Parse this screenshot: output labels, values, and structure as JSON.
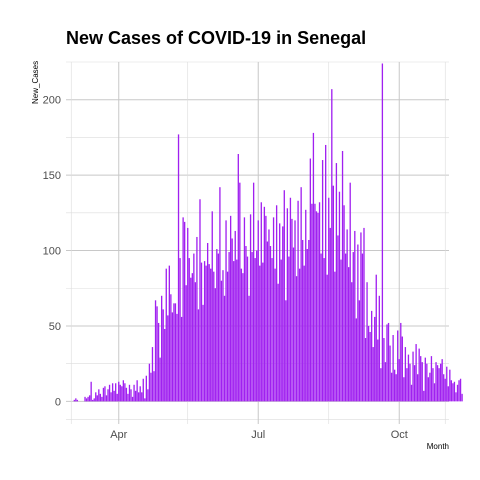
{
  "chart_data": {
    "type": "bar",
    "title": "New Cases of COVID-19 in Senegal",
    "xlabel": "Month",
    "ylabel": "New_Cases",
    "start_date": "2020-03-02",
    "end_date": "2020-10-31",
    "ylim": [
      -15,
      225
    ],
    "y_ticks": [
      0,
      50,
      100,
      150,
      200
    ],
    "x_ticks": [
      {
        "date": "2020-04-01",
        "label": "Apr"
      },
      {
        "date": "2020-07-01",
        "label": "Jul"
      },
      {
        "date": "2020-10-01",
        "label": "Oct"
      }
    ],
    "x_minor_ticks": [
      "2020-03-01",
      "2020-05-16",
      "2020-08-16",
      "2020-10-31"
    ],
    "grid": true,
    "legend": "none",
    "bar_color": "#A020F0",
    "series": [
      {
        "values": [
          0,
          1,
          2,
          1,
          0,
          0,
          0,
          0,
          3,
          2,
          3,
          4,
          13,
          1,
          2,
          6,
          4,
          8,
          5,
          3,
          9,
          10,
          4,
          8,
          11,
          6,
          12,
          7,
          12,
          5,
          13,
          11,
          10,
          14,
          12,
          9,
          5,
          11,
          8,
          3,
          11,
          7,
          14,
          6,
          10,
          6,
          15,
          2,
          17,
          8,
          25,
          19,
          36,
          20,
          67,
          63,
          52,
          29,
          70,
          61,
          48,
          88,
          57,
          90,
          71,
          59,
          65,
          65,
          58,
          177,
          95,
          56,
          122,
          119,
          77,
          115,
          95,
          82,
          85,
          98,
          79,
          109,
          61,
          134,
          92,
          64,
          93,
          90,
          105,
          91,
          88,
          126,
          86,
          75,
          101,
          98,
          142,
          80,
          87,
          70,
          120,
          86,
          99,
          123,
          108,
          93,
          113,
          94,
          164,
          145,
          88,
          85,
          122,
          103,
          96,
          70,
          124,
          99,
          145,
          95,
          100,
          120,
          90,
          132,
          92,
          129,
          123,
          106,
          114,
          103,
          95,
          122,
          88,
          130,
          78,
          118,
          94,
          116,
          140,
          67,
          128,
          96,
          135,
          121,
          102,
          120,
          83,
          133,
          88,
          142,
          107,
          90,
          127,
          101,
          107,
          161,
          131,
          178,
          131,
          126,
          125,
          132,
          98,
          160,
          95,
          170,
          84,
          135,
          115,
          207,
          143,
          86,
          158,
          110,
          139,
          94,
          166,
          130,
          98,
          114,
          89,
          145,
          79,
          99,
          113,
          55,
          104,
          67,
          112,
          98,
          115,
          42,
          79,
          50,
          46,
          60,
          36,
          56,
          84,
          41,
          70,
          22,
          224,
          42,
          26,
          51,
          52,
          37,
          19,
          44,
          21,
          18,
          47,
          28,
          52,
          43,
          16,
          36,
          22,
          31,
          25,
          11,
          33,
          24,
          38,
          18,
          35,
          30,
          26,
          7,
          29,
          25,
          16,
          19,
          30,
          22,
          12,
          26,
          24,
          22,
          25,
          28,
          18,
          15,
          23,
          10,
          21,
          14,
          12,
          13,
          6,
          11,
          14,
          15,
          5
        ]
      }
    ]
  }
}
